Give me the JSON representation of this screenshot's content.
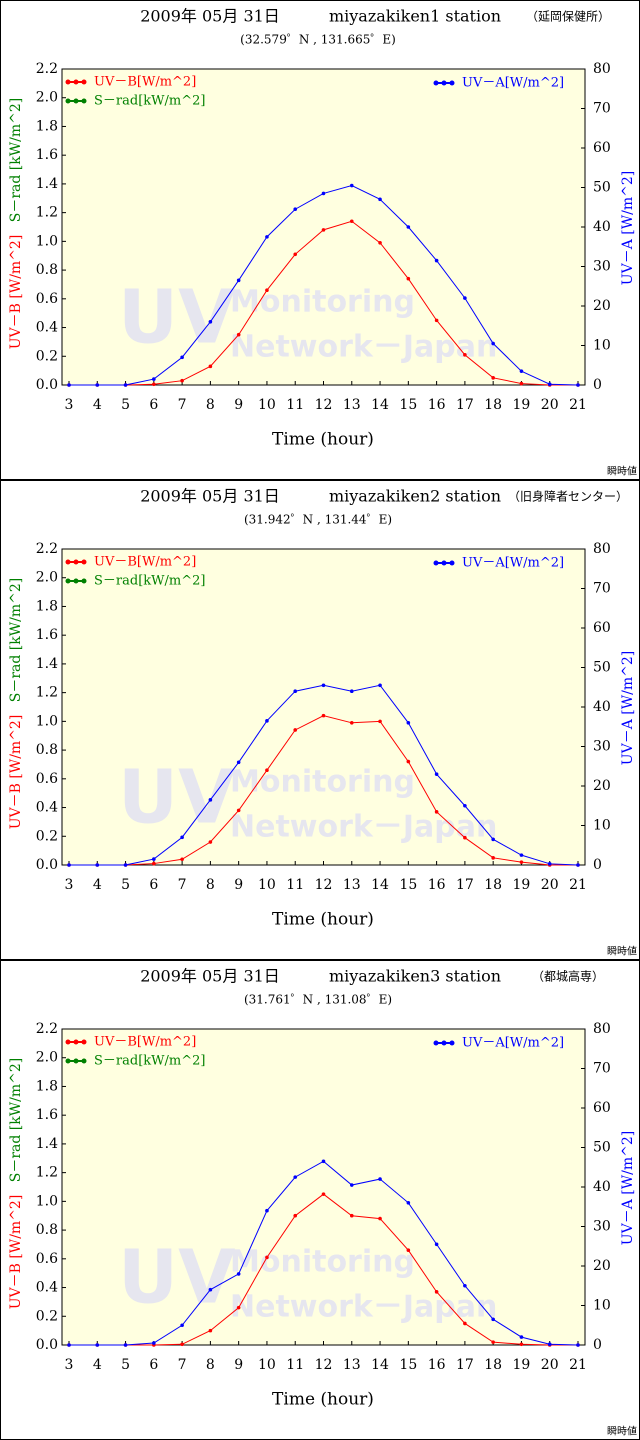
{
  "chart_data": [
    {
      "type": "line",
      "title": "2009年 05月 31日",
      "station": "miyazakiken1 station",
      "location": "（延岡保健所）",
      "subtitle": "(32.579゜N , 131.665゜E)",
      "xlabel": "Time (hour)",
      "ylabel": "UV－B [W/m^2]",
      "ylabel_secondary": "S－rad [kW/m^2]",
      "y2label": "UV－A [W/m^2]",
      "footer": "瞬時値",
      "watermark": [
        "UV",
        "Monitoring",
        "Network－Japan"
      ],
      "x": [
        3,
        4,
        5,
        6,
        7,
        8,
        9,
        10,
        11,
        12,
        13,
        14,
        15,
        16,
        17,
        18,
        19,
        20,
        21
      ],
      "series": [
        {
          "name": "UV－B[W/m^2]",
          "color": "#ff0000",
          "values": [
            0,
            0,
            0,
            0.005,
            0.03,
            0.13,
            0.35,
            0.66,
            0.91,
            1.08,
            1.14,
            0.99,
            0.74,
            0.45,
            0.21,
            0.05,
            0.01,
            0,
            0
          ]
        },
        {
          "name": "S－rad[kW/m^2]",
          "color": "#008000",
          "values": [
            null,
            null,
            null,
            null,
            null,
            null,
            null,
            null,
            null,
            null,
            null,
            null,
            null,
            null,
            null,
            null,
            null,
            null,
            null
          ]
        },
        {
          "name": "UV－A[W/m^2]",
          "color": "#0000ff",
          "axis": "y2",
          "values": [
            0,
            0,
            0,
            1.5,
            7,
            16,
            26.5,
            37.5,
            44.5,
            48.5,
            50.5,
            47,
            40,
            31.5,
            22,
            10.5,
            3.5,
            0.2,
            0
          ]
        }
      ],
      "xlim": [
        3,
        21
      ],
      "xticks": [
        3,
        4,
        5,
        6,
        7,
        8,
        9,
        10,
        11,
        12,
        13,
        14,
        15,
        16,
        17,
        18,
        19,
        20,
        21
      ],
      "ylim": [
        0,
        2.2
      ],
      "yticks": [
        {
          "value": 0,
          "label": "0.0"
        },
        0.2,
        0.4,
        0.6,
        0.8,
        {
          "value": 1,
          "label": "1.0"
        },
        1.2,
        1.4,
        1.6,
        1.8,
        {
          "value": 2,
          "label": "2.0"
        },
        2.2
      ],
      "y2lim": [
        0,
        80
      ],
      "y2ticks": [
        0,
        10,
        20,
        30,
        40,
        50,
        60,
        70,
        80
      ]
    },
    {
      "type": "line",
      "title": "2009年 05月 31日",
      "station": "miyazakiken2 station",
      "location": "（旧身障者センター）",
      "subtitle": "(31.942゜N , 131.44゜E)",
      "xlabel": "Time (hour)",
      "ylabel": "UV－B [W/m^2]",
      "ylabel_secondary": "S－rad [kW/m^2]",
      "y2label": "UV－A [W/m^2]",
      "footer": "瞬時値",
      "watermark": [
        "UV",
        "Monitoring",
        "Network－Japan"
      ],
      "x": [
        3,
        4,
        5,
        6,
        7,
        8,
        9,
        10,
        11,
        12,
        13,
        14,
        15,
        16,
        17,
        18,
        19,
        20,
        21
      ],
      "series": [
        {
          "name": "UV－B[W/m^2]",
          "color": "#ff0000",
          "values": [
            0,
            0,
            0,
            0.01,
            0.04,
            0.16,
            0.38,
            0.66,
            0.94,
            1.04,
            0.99,
            1.0,
            0.72,
            0.37,
            0.19,
            0.05,
            0.02,
            0,
            0
          ]
        },
        {
          "name": "S－rad[kW/m^2]",
          "color": "#008000",
          "values": [
            null,
            null,
            null,
            null,
            null,
            null,
            null,
            null,
            null,
            null,
            null,
            null,
            null,
            null,
            null,
            null,
            null,
            null,
            null
          ]
        },
        {
          "name": "UV－A[W/m^2]",
          "color": "#0000ff",
          "axis": "y2",
          "values": [
            0,
            0,
            0,
            1.5,
            7,
            16.5,
            26,
            36.5,
            44,
            45.5,
            44,
            45.5,
            36,
            23,
            15,
            6.5,
            2.5,
            0.3,
            0
          ]
        }
      ],
      "xlim": [
        3,
        21
      ],
      "xticks": [
        3,
        4,
        5,
        6,
        7,
        8,
        9,
        10,
        11,
        12,
        13,
        14,
        15,
        16,
        17,
        18,
        19,
        20,
        21
      ],
      "ylim": [
        0,
        2.2
      ],
      "yticks": [
        {
          "value": 0,
          "label": "0.0"
        },
        0.2,
        0.4,
        0.6,
        0.8,
        {
          "value": 1,
          "label": "1.0"
        },
        1.2,
        1.4,
        1.6,
        1.8,
        {
          "value": 2,
          "label": "2.0"
        },
        2.2
      ],
      "y2lim": [
        0,
        80
      ],
      "y2ticks": [
        0,
        10,
        20,
        30,
        40,
        50,
        60,
        70,
        80
      ]
    },
    {
      "type": "line",
      "title": "2009年 05月 31日",
      "station": "miyazakiken3 station",
      "location": "（都城高専）",
      "subtitle": "(31.761゜N , 131.08゜E)",
      "xlabel": "Time (hour)",
      "ylabel": "UV－B [W/m^2]",
      "ylabel_secondary": "S－rad [kW/m^2]",
      "y2label": "UV－A [W/m^2]",
      "footer": "瞬時値",
      "watermark": [
        "UV",
        "Monitoring",
        "Network－Japan"
      ],
      "x": [
        3,
        4,
        5,
        6,
        7,
        8,
        9,
        10,
        11,
        12,
        13,
        14,
        15,
        16,
        17,
        18,
        19,
        20,
        21
      ],
      "series": [
        {
          "name": "UV－B[W/m^2]",
          "color": "#ff0000",
          "values": [
            0,
            0,
            0,
            0,
            0.005,
            0.1,
            0.26,
            0.61,
            0.9,
            1.05,
            0.9,
            0.88,
            0.66,
            0.37,
            0.15,
            0.02,
            0.005,
            0,
            0
          ]
        },
        {
          "name": "S－rad[kW/m^2]",
          "color": "#008000",
          "values": [
            null,
            null,
            null,
            null,
            null,
            null,
            null,
            null,
            null,
            null,
            null,
            null,
            null,
            null,
            null,
            null,
            null,
            null,
            null
          ]
        },
        {
          "name": "UV－A[W/m^2]",
          "color": "#0000ff",
          "axis": "y2",
          "values": [
            0,
            0,
            0,
            0.5,
            5,
            14,
            18,
            34,
            42.5,
            46.5,
            40.5,
            42,
            36,
            25.5,
            15,
            6.5,
            2,
            0.2,
            0
          ]
        }
      ],
      "xlim": [
        3,
        21
      ],
      "xticks": [
        3,
        4,
        5,
        6,
        7,
        8,
        9,
        10,
        11,
        12,
        13,
        14,
        15,
        16,
        17,
        18,
        19,
        20,
        21
      ],
      "ylim": [
        0,
        2.2
      ],
      "yticks": [
        {
          "value": 0,
          "label": "0.0"
        },
        0.2,
        0.4,
        0.6,
        0.8,
        {
          "value": 1,
          "label": "1.0"
        },
        1.2,
        1.4,
        1.6,
        1.8,
        {
          "value": 2,
          "label": "2.0"
        },
        2.2
      ],
      "y2lim": [
        0,
        80
      ],
      "y2ticks": [
        0,
        10,
        20,
        30,
        40,
        50,
        60,
        70,
        80
      ]
    }
  ]
}
